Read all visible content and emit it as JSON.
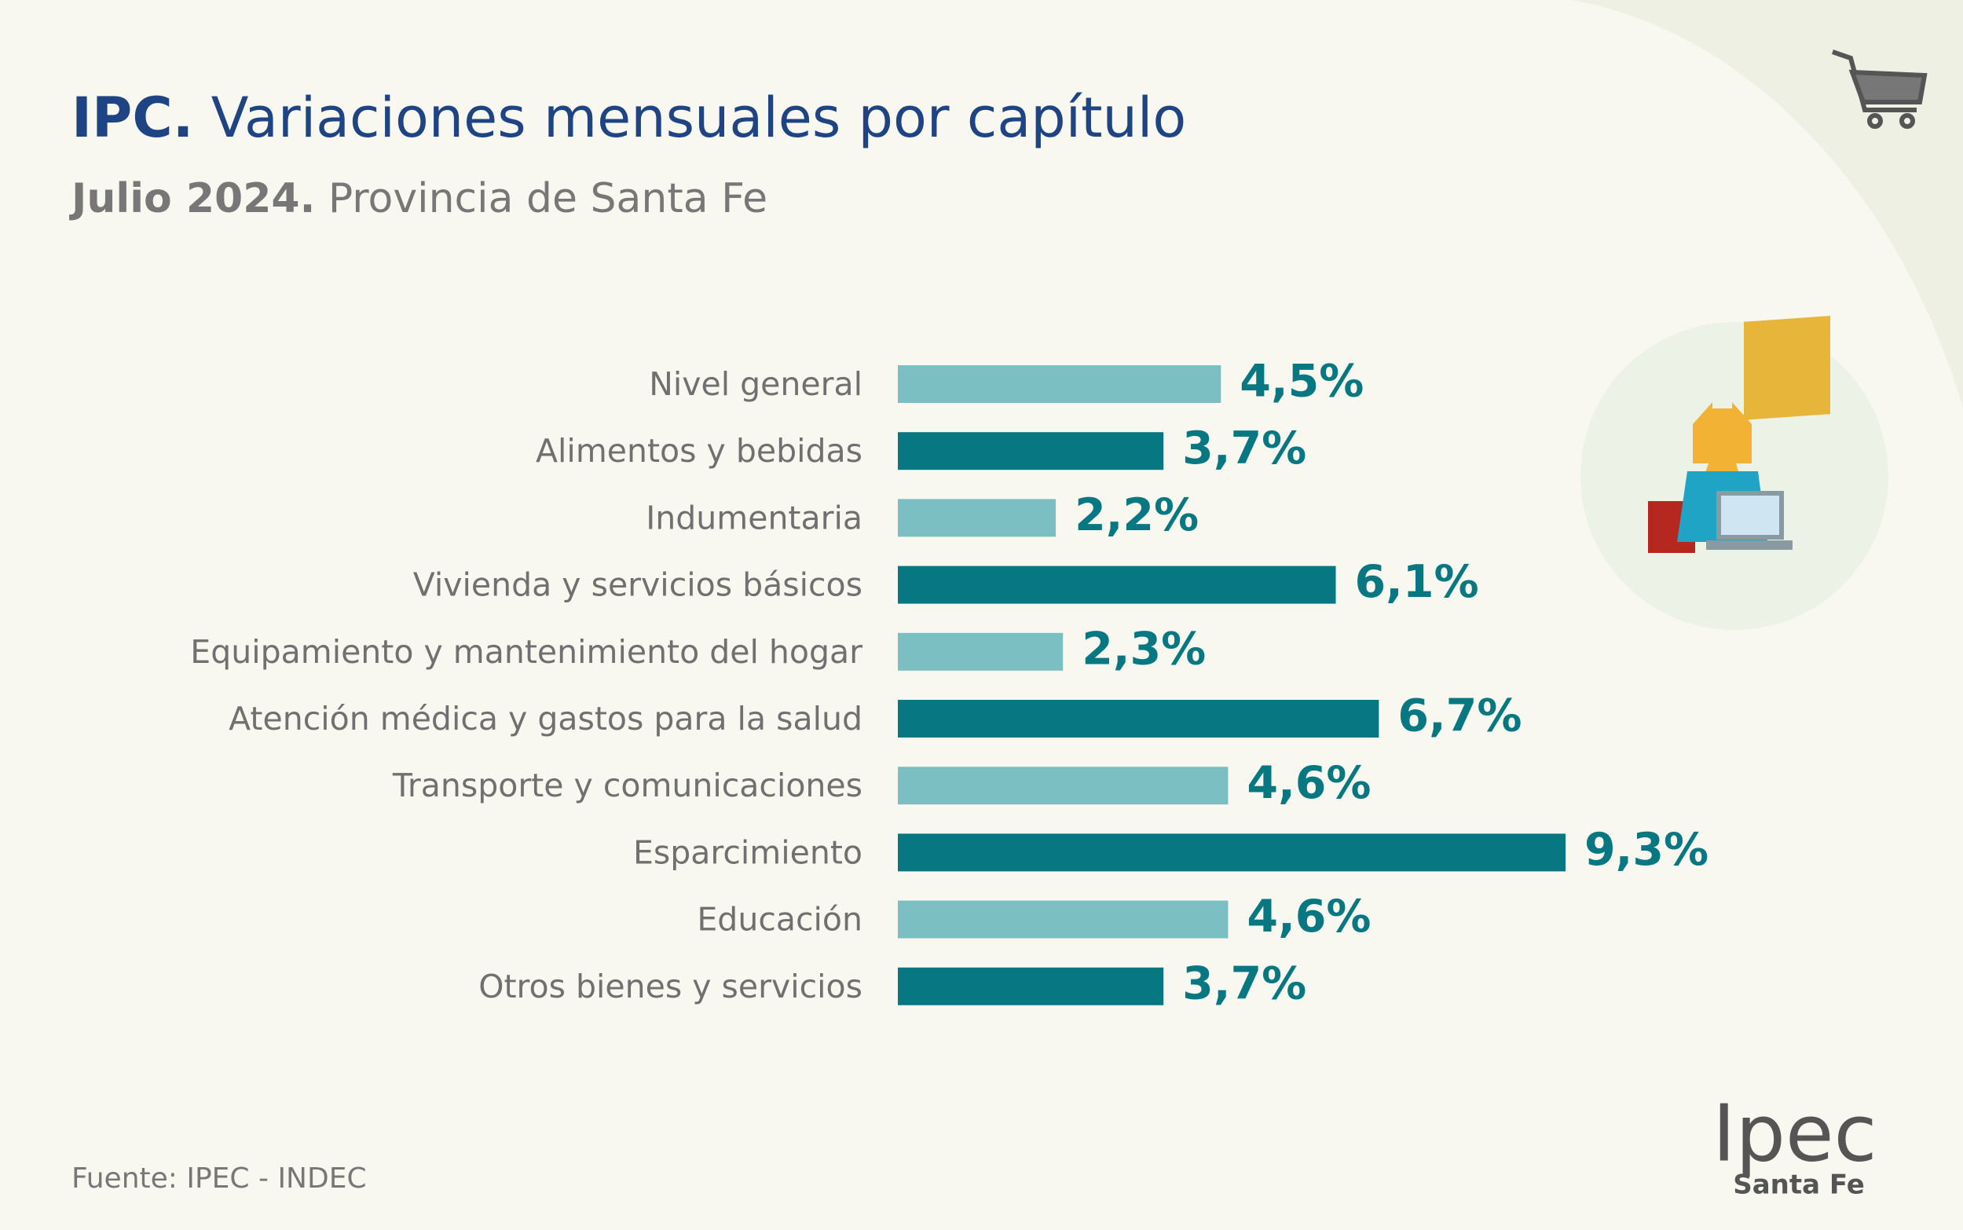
{
  "chart_data": {
    "type": "hbar",
    "title_prefix": "IPC.",
    "title": "Variaciones mensuales por capítulo",
    "subtitle_prefix": "Julio 2024.",
    "subtitle": "Provincia de Santa Fe",
    "categories": [
      "Nivel general",
      "Alimentos y bebidas",
      "Indumentaria",
      "Vivienda y servicios básicos",
      "Equipamiento y mantenimiento del hogar",
      "Atención médica y gastos para la salud",
      "Transporte y comunicaciones",
      "Esparcimiento",
      "Educación",
      "Otros bienes y servicios"
    ],
    "values": [
      4.5,
      3.7,
      2.2,
      6.1,
      2.3,
      6.7,
      4.6,
      9.3,
      4.6,
      3.7
    ],
    "value_labels": [
      "4,5%",
      "3,7%",
      "2,2%",
      "6,1%",
      "2,3%",
      "6,7%",
      "4,6%",
      "9,3%",
      "4,6%",
      "3,7%"
    ],
    "colors": [
      "#7bbfc3",
      "#077882",
      "#7bbfc3",
      "#077882",
      "#7bbfc3",
      "#077882",
      "#7bbfc3",
      "#077882",
      "#7bbfc3",
      "#077882"
    ],
    "label_color": "#077882",
    "source": "Fuente: IPEC - INDEC",
    "logo": "Ipec",
    "logo_sub": "Santa Fe"
  }
}
